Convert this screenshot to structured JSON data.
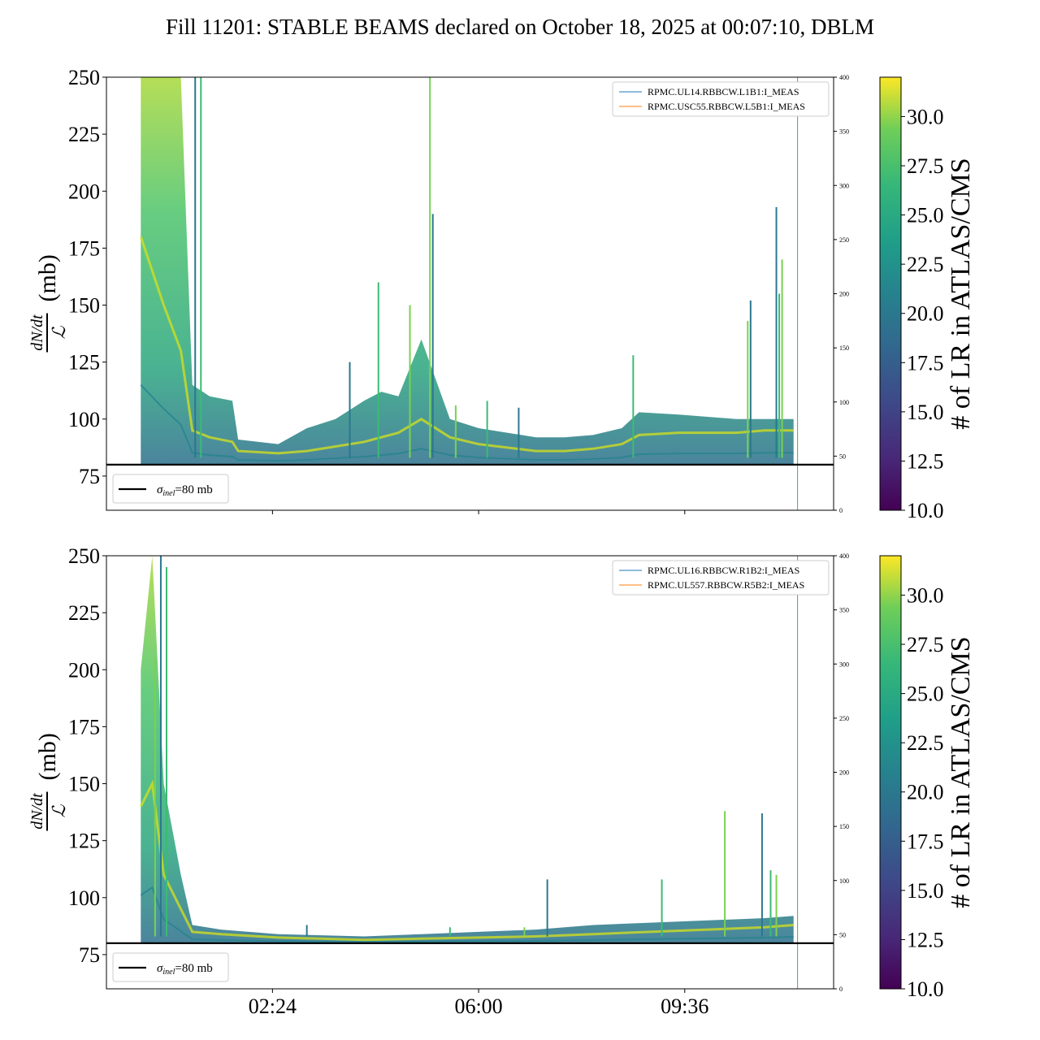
{
  "title": "Fill 11201: STABLE BEAMS declared on October 18, 2025 at 00:07:10, DBLM",
  "colors": {
    "dump_line": "#4caf50",
    "sigma_line": "#000000",
    "legend_blue": "#1f77b4",
    "legend_orange": "#ff7f0e"
  },
  "chart_data": [
    {
      "type": "line",
      "panel": "top",
      "ylabel_num": "dN/dt",
      "ylabel_den": "ℒ",
      "ylabel_unit": "(mb)",
      "ylim": [
        60,
        250
      ],
      "yticks": [
        75,
        100,
        125,
        150,
        175,
        200,
        225,
        250
      ],
      "y2lim": [
        0,
        400
      ],
      "y2ticks": [
        0,
        50,
        100,
        150,
        200,
        250,
        300,
        350,
        400
      ],
      "xlim_hours": [
        -0.5,
        12.2
      ],
      "xticks": [
        {
          "value": 2.4,
          "label": "02:24"
        },
        {
          "value": 6.0,
          "label": "06:00"
        },
        {
          "value": 9.6,
          "label": "09:36"
        }
      ],
      "xtick_labels_visible": false,
      "dump_time_hours": 11.57,
      "sigma_inel": 80,
      "sigma_legend": "σinel=80 mb",
      "sigma_legend_sub": "inel",
      "legend": [
        "RPMC.UL14.RBBCW.L1B1:I_MEAS",
        "RPMC.USC55.RBBCW.L5B1:I_MEAS"
      ],
      "colorbar": {
        "label": "# of LR in ATLAS/CMS",
        "range": [
          10,
          32
        ],
        "ticks": [
          "10.0",
          "12.5",
          "15.0",
          "17.5",
          "20.0",
          "22.5",
          "25.0",
          "27.5",
          "30.0"
        ]
      },
      "series_envelope": [
        {
          "t": 0.1,
          "upper": 250,
          "mean": 180
        },
        {
          "t": 0.5,
          "upper": 250,
          "mean": 150
        },
        {
          "t": 0.8,
          "upper": 250,
          "mean": 130
        },
        {
          "t": 1.0,
          "upper": 115,
          "mean": 95
        },
        {
          "t": 1.3,
          "upper": 110,
          "mean": 92
        },
        {
          "t": 1.7,
          "upper": 108,
          "mean": 90
        },
        {
          "t": 1.8,
          "upper": 91,
          "mean": 86
        },
        {
          "t": 2.5,
          "upper": 89,
          "mean": 85
        },
        {
          "t": 3.0,
          "upper": 96,
          "mean": 86
        },
        {
          "t": 3.5,
          "upper": 100,
          "mean": 88
        },
        {
          "t": 4.0,
          "upper": 108,
          "mean": 90
        },
        {
          "t": 4.3,
          "upper": 112,
          "mean": 92
        },
        {
          "t": 4.6,
          "upper": 110,
          "mean": 94
        },
        {
          "t": 5.0,
          "upper": 135,
          "mean": 100
        },
        {
          "t": 5.5,
          "upper": 100,
          "mean": 92
        },
        {
          "t": 6.0,
          "upper": 96,
          "mean": 89
        },
        {
          "t": 7.0,
          "upper": 92,
          "mean": 86
        },
        {
          "t": 7.5,
          "upper": 92,
          "mean": 86
        },
        {
          "t": 8.0,
          "upper": 93,
          "mean": 87
        },
        {
          "t": 8.5,
          "upper": 96,
          "mean": 89
        },
        {
          "t": 8.8,
          "upper": 103,
          "mean": 93
        },
        {
          "t": 9.5,
          "upper": 102,
          "mean": 94
        },
        {
          "t": 10.5,
          "upper": 100,
          "mean": 94
        },
        {
          "t": 11.0,
          "upper": 100,
          "mean": 95
        },
        {
          "t": 11.5,
          "upper": 100,
          "mean": 95
        }
      ],
      "spikes": [
        {
          "t": 1.05,
          "y": 250
        },
        {
          "t": 1.15,
          "y": 250
        },
        {
          "t": 5.15,
          "y": 250
        },
        {
          "t": 5.2,
          "y": 190
        },
        {
          "t": 4.25,
          "y": 160
        },
        {
          "t": 4.8,
          "y": 150
        },
        {
          "t": 3.75,
          "y": 125
        },
        {
          "t": 8.7,
          "y": 128
        },
        {
          "t": 10.7,
          "y": 143
        },
        {
          "t": 10.75,
          "y": 152
        },
        {
          "t": 11.25,
          "y": 155
        },
        {
          "t": 11.3,
          "y": 170
        },
        {
          "t": 11.2,
          "y": 193
        },
        {
          "t": 6.15,
          "y": 108
        },
        {
          "t": 5.6,
          "y": 106
        },
        {
          "t": 6.7,
          "y": 105
        }
      ]
    },
    {
      "type": "line",
      "panel": "bottom",
      "ylabel_num": "dN/dt",
      "ylabel_den": "ℒ",
      "ylabel_unit": "(mb)",
      "ylim": [
        60,
        250
      ],
      "yticks": [
        75,
        100,
        125,
        150,
        175,
        200,
        225,
        250
      ],
      "y2lim": [
        0,
        400
      ],
      "y2ticks": [
        0,
        50,
        100,
        150,
        200,
        250,
        300,
        350,
        400
      ],
      "xlim_hours": [
        -0.5,
        12.2
      ],
      "xticks": [
        {
          "value": 2.4,
          "label": "02:24"
        },
        {
          "value": 6.0,
          "label": "06:00"
        },
        {
          "value": 9.6,
          "label": "09:36"
        }
      ],
      "xtick_labels_visible": true,
      "dump_time_hours": 11.57,
      "sigma_inel": 80,
      "sigma_legend": "σinel=80 mb",
      "sigma_legend_sub": "inel",
      "legend": [
        "RPMC.UL16.RBBCW.R1B2:I_MEAS",
        "RPMC.UL557.RBBCW.R5B2:I_MEAS"
      ],
      "colorbar": {
        "label": "# of LR in ATLAS/CMS",
        "range": [
          10,
          32
        ],
        "ticks": [
          "10.0",
          "12.5",
          "15.0",
          "17.5",
          "20.0",
          "22.5",
          "25.0",
          "27.5",
          "30.0"
        ]
      },
      "series_envelope": [
        {
          "t": 0.1,
          "upper": 200,
          "mean": 140
        },
        {
          "t": 0.3,
          "upper": 250,
          "mean": 150
        },
        {
          "t": 0.5,
          "upper": 150,
          "mean": 110
        },
        {
          "t": 0.8,
          "upper": 110,
          "mean": 95
        },
        {
          "t": 1.0,
          "upper": 88,
          "mean": 85
        },
        {
          "t": 1.5,
          "upper": 86,
          "mean": 84
        },
        {
          "t": 2.5,
          "upper": 84,
          "mean": 82.5
        },
        {
          "t": 4.0,
          "upper": 83,
          "mean": 81.5
        },
        {
          "t": 5.0,
          "upper": 84,
          "mean": 82
        },
        {
          "t": 6.0,
          "upper": 85,
          "mean": 82.5
        },
        {
          "t": 7.0,
          "upper": 86,
          "mean": 83
        },
        {
          "t": 8.0,
          "upper": 88,
          "mean": 84
        },
        {
          "t": 9.0,
          "upper": 89,
          "mean": 85
        },
        {
          "t": 10.0,
          "upper": 90,
          "mean": 86
        },
        {
          "t": 11.0,
          "upper": 91,
          "mean": 87
        },
        {
          "t": 11.5,
          "upper": 92,
          "mean": 88
        }
      ],
      "spikes": [
        {
          "t": 0.45,
          "y": 250
        },
        {
          "t": 0.55,
          "y": 245
        },
        {
          "t": 0.35,
          "y": 205
        },
        {
          "t": 7.2,
          "y": 108
        },
        {
          "t": 9.2,
          "y": 108
        },
        {
          "t": 10.3,
          "y": 138
        },
        {
          "t": 10.95,
          "y": 137
        },
        {
          "t": 11.1,
          "y": 112
        },
        {
          "t": 11.2,
          "y": 110
        },
        {
          "t": 3.0,
          "y": 88
        },
        {
          "t": 5.5,
          "y": 87
        },
        {
          "t": 6.8,
          "y": 87
        }
      ]
    }
  ]
}
